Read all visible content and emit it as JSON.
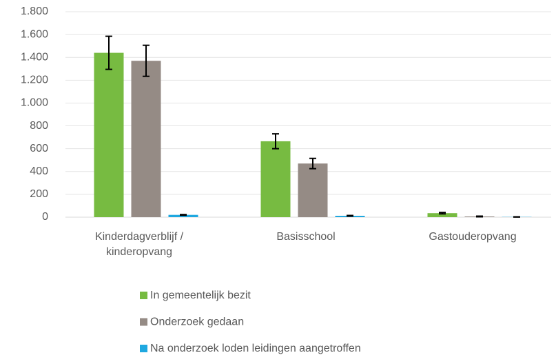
{
  "chart_data": {
    "type": "bar",
    "categories": [
      "Kinderdagverblijf / kinderopvang",
      "Basisschool",
      "Gastouderopvang"
    ],
    "series": [
      {
        "name": "In gemeentelijk bezit",
        "color": "#77bb41",
        "values": [
          1440,
          665,
          35
        ],
        "errors": [
          145,
          65,
          6
        ]
      },
      {
        "name": "Onderzoek gedaan",
        "color": "#958b85",
        "values": [
          1370,
          470,
          6
        ],
        "errors": [
          136,
          45,
          3
        ]
      },
      {
        "name": "Na onderzoek loden leidingen aangetroffen",
        "color": "#1fa8e0",
        "values": [
          20,
          12,
          2
        ],
        "errors": [
          3,
          3,
          1
        ]
      }
    ],
    "ylim": [
      0,
      1800
    ],
    "yticks": [
      0,
      200,
      400,
      600,
      800,
      {
        "value": 1000,
        "label": "1.000"
      },
      {
        "value": 1200,
        "label": "1.200"
      },
      {
        "value": 1400,
        "label": "1.400"
      },
      {
        "value": 1600,
        "label": "1.600"
      },
      {
        "value": 1800,
        "label": "1.800"
      }
    ],
    "grid": true
  }
}
